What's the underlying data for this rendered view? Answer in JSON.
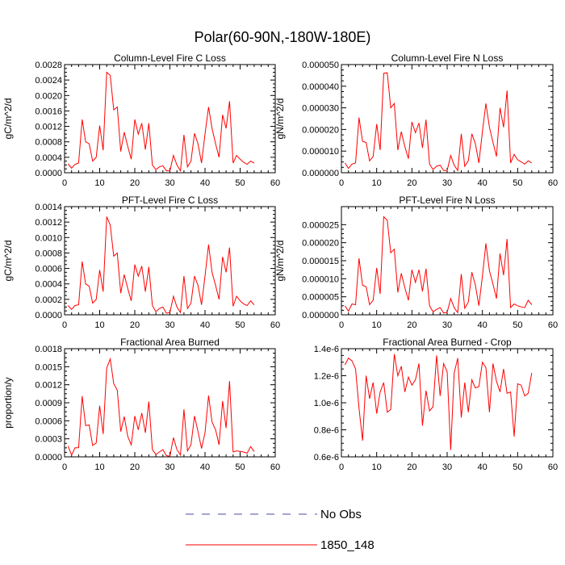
{
  "figure": {
    "title": "Polar(60-90N,-180W-180E)",
    "legend": [
      {
        "label": "No Obs",
        "color": "#4a4aa8",
        "dash": true
      },
      {
        "label": "1850_148",
        "color": "#ff0000",
        "dash": false
      }
    ]
  },
  "chart_data": [
    {
      "type": "line",
      "title": "Column-Level Fire C Loss",
      "ylabel": "gC/m^2/d",
      "xlim": [
        0,
        60
      ],
      "xticks": [
        "0",
        "10",
        "20",
        "30",
        "40",
        "50",
        "60"
      ],
      "ylim": [
        0,
        0.0028
      ],
      "yticks": [
        "0.0000",
        "0.0004",
        "0.0008",
        "0.0012",
        "0.0016",
        "0.0020",
        "0.0024",
        "0.0028"
      ],
      "series": [
        {
          "color": "#ff0000",
          "x": [
            1,
            2,
            3,
            4,
            5,
            6,
            7,
            8,
            9,
            10,
            11,
            12,
            13,
            14,
            15,
            16,
            17,
            18,
            19,
            20,
            21,
            22,
            23,
            24,
            25,
            26,
            27,
            28,
            29,
            30,
            31,
            32,
            33,
            34,
            35,
            36,
            37,
            38,
            39,
            40,
            41,
            42,
            43,
            44,
            45,
            46,
            47,
            48,
            49,
            50,
            51,
            52,
            53,
            54
          ],
          "y": [
            0.00023,
            0.00012,
            0.00022,
            0.00025,
            0.00138,
            0.0008,
            0.00075,
            0.0003,
            0.0004,
            0.00122,
            0.00058,
            0.0026,
            0.00252,
            0.00163,
            0.0017,
            0.00055,
            0.00105,
            0.00068,
            0.00035,
            0.00138,
            0.001,
            0.00128,
            0.0006,
            0.00128,
            0.0002,
            8e-05,
            0.00015,
            0.00018,
            5e-05,
            5e-05,
            0.00045,
            0.0002,
            5e-05,
            0.00098,
            0.00015,
            0.0003,
            0.00102,
            0.00075,
            0.00025,
            0.001,
            0.0017,
            0.00115,
            0.00075,
            0.0004,
            0.0015,
            0.00115,
            0.00185,
            0.00025,
            0.00045,
            0.00035,
            0.00027,
            0.00022,
            0.0003,
            0.00025
          ]
        }
      ]
    },
    {
      "type": "line",
      "title": "Column-Level Fire N Loss",
      "ylabel": "gN/m^2/d",
      "xlim": [
        0,
        60
      ],
      "xticks": [
        "0",
        "10",
        "20",
        "30",
        "40",
        "50",
        "60"
      ],
      "ylim": [
        0,
        5e-05
      ],
      "yticks": [
        "0.000000",
        "0.000010",
        "0.000020",
        "0.000030",
        "0.000040",
        "0.000050"
      ],
      "series": [
        {
          "color": "#ff0000",
          "x": [
            1,
            2,
            3,
            4,
            5,
            6,
            7,
            8,
            9,
            10,
            11,
            12,
            13,
            14,
            15,
            16,
            17,
            18,
            19,
            20,
            21,
            22,
            23,
            24,
            25,
            26,
            27,
            28,
            29,
            30,
            31,
            32,
            33,
            34,
            35,
            36,
            37,
            38,
            39,
            40,
            41,
            42,
            43,
            44,
            45,
            46,
            47,
            48,
            49,
            50,
            51,
            52,
            53,
            54
          ],
          "y": [
            4.5e-06,
            2e-06,
            4e-06,
            4.5e-06,
            2.55e-05,
            1.45e-05,
            1.4e-05,
            5.5e-06,
            7.5e-06,
            2.25e-05,
            1.05e-05,
            4.6e-05,
            4.62e-05,
            3e-05,
            3.2e-05,
            1.05e-05,
            1.9e-05,
            1.2e-05,
            6.5e-06,
            2.35e-05,
            1.85e-05,
            2.3e-05,
            1.15e-05,
            2.45e-05,
            4e-06,
            1.5e-06,
            3e-06,
            3.5e-06,
            1e-06,
            1e-06,
            8e-06,
            3.5e-06,
            1e-06,
            1.8e-05,
            3e-06,
            5.5e-06,
            1.8e-05,
            1.35e-05,
            4.5e-06,
            1.9e-05,
            3.2e-05,
            2.1e-05,
            1.4e-05,
            7.5e-06,
            3e-05,
            2.1e-05,
            3.8e-05,
            4.5e-06,
            8.5e-06,
            6e-06,
            5e-06,
            4e-06,
            5.5e-06,
            4.5e-06
          ]
        }
      ]
    },
    {
      "type": "line",
      "title": "PFT-Level Fire C Loss",
      "ylabel": "gC/m^2/d",
      "xlim": [
        0,
        60
      ],
      "xticks": [
        "0",
        "10",
        "20",
        "30",
        "40",
        "50",
        "60"
      ],
      "ylim": [
        0,
        0.0014
      ],
      "yticks": [
        "0.0000",
        "0.0002",
        "0.0004",
        "0.0006",
        "0.0008",
        "0.0010",
        "0.0012",
        "0.0014"
      ],
      "series": [
        {
          "color": "#ff0000",
          "x": [
            1,
            2,
            3,
            4,
            5,
            6,
            7,
            8,
            9,
            10,
            11,
            12,
            13,
            14,
            15,
            16,
            17,
            18,
            19,
            20,
            21,
            22,
            23,
            24,
            25,
            26,
            27,
            28,
            29,
            30,
            31,
            32,
            33,
            34,
            35,
            36,
            37,
            38,
            39,
            40,
            41,
            42,
            43,
            44,
            45,
            46,
            47,
            48,
            49,
            50,
            51,
            52,
            53,
            54
          ],
          "y": [
            0.00012,
            7e-05,
            0.00012,
            0.00013,
            0.00069,
            0.0004,
            0.00037,
            0.00015,
            0.0002,
            0.00058,
            0.0003,
            0.00127,
            0.00116,
            0.00076,
            0.0008,
            0.00028,
            0.00052,
            0.00034,
            0.00018,
            0.00065,
            0.0005,
            0.00063,
            0.0003,
            0.00062,
            0.00012,
            4e-05,
            8e-05,
            0.0001,
            2e-05,
            3e-05,
            0.00024,
            0.0001,
            3e-05,
            0.0005,
            8e-05,
            0.00015,
            0.0005,
            0.00038,
            0.00013,
            0.0005,
            0.00091,
            0.00055,
            0.00038,
            0.0002,
            0.00075,
            0.00055,
            0.00087,
            0.00011,
            0.00024,
            0.00018,
            0.00014,
            0.00012,
            0.00018,
            0.00013
          ]
        }
      ]
    },
    {
      "type": "line",
      "title": "PFT-Level Fire N Loss",
      "ylabel": "gN/m^2/d",
      "xlim": [
        0,
        60
      ],
      "xticks": [
        "0",
        "10",
        "20",
        "30",
        "40",
        "50",
        "60"
      ],
      "ylim": [
        0,
        3e-05
      ],
      "yticks": [
        "0.000000",
        "0.000005",
        "0.000010",
        "0.000015",
        "0.000020",
        "0.000025"
      ],
      "series": [
        {
          "color": "#ff0000",
          "x": [
            1,
            2,
            3,
            4,
            5,
            6,
            7,
            8,
            9,
            10,
            11,
            12,
            13,
            14,
            15,
            16,
            17,
            18,
            19,
            20,
            21,
            22,
            23,
            24,
            25,
            26,
            27,
            28,
            29,
            30,
            31,
            32,
            33,
            34,
            35,
            36,
            37,
            38,
            39,
            40,
            41,
            42,
            43,
            44,
            45,
            46,
            47,
            48,
            49,
            50,
            51,
            52,
            53,
            54
          ],
          "y": [
            2.5e-06,
            1e-06,
            3e-06,
            2.8e-06,
            1.57e-05,
            8.2e-06,
            7.8e-06,
            2.8e-06,
            4e-06,
            1.3e-05,
            5.8e-06,
            2.72e-05,
            2.62e-05,
            1.72e-05,
            1.82e-05,
            6.2e-06,
            1.15e-05,
            7.5e-06,
            4e-06,
            1.25e-05,
            9e-06,
            1.25e-05,
            6.5e-06,
            1.28e-05,
            2.5e-06,
            8e-07,
            1.5e-06,
            2e-06,
            5e-07,
            7e-07,
            4.5e-06,
            2e-06,
            6e-07,
            1.13e-05,
            1.8e-06,
            3.5e-06,
            1.18e-05,
            8.3e-06,
            2.5e-06,
            1.08e-05,
            1.98e-05,
            1.22e-05,
            8.5e-06,
            4.5e-06,
            1.7e-05,
            1.1e-05,
            2.1e-05,
            2e-06,
            3e-06,
            2.5e-06,
            2.2e-06,
            2e-06,
            4e-06,
            2.8e-06
          ]
        }
      ]
    },
    {
      "type": "line",
      "title": "Fractional Area Burned",
      "ylabel": "proportion/y",
      "xlim": [
        0,
        60
      ],
      "xticks": [
        "0",
        "10",
        "20",
        "30",
        "40",
        "50",
        "60"
      ],
      "ylim": [
        0,
        0.0018
      ],
      "yticks": [
        "0.0000",
        "0.0003",
        "0.0006",
        "0.0009",
        "0.0012",
        "0.0015",
        "0.0018"
      ],
      "series": [
        {
          "color": "#ff0000",
          "x": [
            1,
            2,
            3,
            4,
            5,
            6,
            7,
            8,
            9,
            10,
            11,
            12,
            13,
            14,
            15,
            16,
            17,
            18,
            19,
            20,
            21,
            22,
            23,
            24,
            25,
            26,
            27,
            28,
            29,
            30,
            31,
            32,
            33,
            34,
            35,
            36,
            37,
            38,
            39,
            40,
            41,
            42,
            43,
            44,
            45,
            46,
            47,
            48,
            49,
            50,
            51,
            52,
            53,
            54
          ],
          "y": [
            0.00018,
            3e-05,
            0.00015,
            0.00015,
            0.00101,
            0.00052,
            0.00053,
            0.00019,
            0.00023,
            0.00085,
            0.00038,
            0.00148,
            0.00163,
            0.00122,
            0.00111,
            0.00042,
            0.00067,
            0.00034,
            0.0002,
            0.00068,
            0.00045,
            0.00073,
            0.0004,
            0.00092,
            0.00012,
            4e-05,
            8e-05,
            0.00012,
            2e-05,
            1e-05,
            0.00032,
            0.00012,
            3e-05,
            0.00079,
            0.0001,
            0.0002,
            0.00068,
            0.00042,
            0.00014,
            0.0004,
            0.00102,
            0.00058,
            0.00045,
            0.0002,
            0.00093,
            0.00048,
            0.00126,
            8e-05,
            0.0001,
            9e-05,
            8e-05,
            6e-05,
            0.00017,
            9e-05
          ]
        }
      ]
    },
    {
      "type": "line",
      "title": "Fractional Area Burned - Crop",
      "ylabel": "",
      "xlim": [
        0,
        60
      ],
      "xticks": [
        "0",
        "10",
        "20",
        "30",
        "40",
        "50",
        "60"
      ],
      "ylim": [
        6e-07,
        1.4e-06
      ],
      "yticks": [
        "0.6e-6",
        "0.8e-6",
        "1.0e-6",
        "1.2e-6",
        "1.4e-6"
      ],
      "series": [
        {
          "color": "#ff0000",
          "x": [
            1,
            2,
            3,
            4,
            5,
            6,
            7,
            8,
            9,
            10,
            11,
            12,
            13,
            14,
            15,
            16,
            17,
            18,
            19,
            20,
            21,
            22,
            23,
            24,
            25,
            26,
            27,
            28,
            29,
            30,
            31,
            32,
            33,
            34,
            35,
            36,
            37,
            38,
            39,
            40,
            41,
            42,
            43,
            44,
            45,
            46,
            47,
            48,
            49,
            50,
            51,
            52,
            53,
            54
          ],
          "y": [
            1.28e-06,
            1.33e-06,
            1.31e-06,
            1.25e-06,
            9.6e-07,
            7.2e-07,
            1.2e-06,
            1.03e-06,
            1.15e-06,
            9.2e-07,
            1.08e-06,
            1.15e-06,
            9.3e-07,
            9.5e-07,
            1.36e-06,
            1.2e-06,
            1.27e-06,
            1.08e-06,
            1.19e-06,
            1.13e-06,
            1.17e-06,
            1.29e-06,
            8.3e-07,
            1.09e-06,
            9.4e-07,
            9.7e-07,
            1.35e-06,
            1.05e-06,
            1.29e-06,
            1.23e-06,
            6.5e-07,
            1.22e-06,
            1.33e-06,
            8.9e-07,
            1.15e-06,
            9.3e-07,
            1.17e-06,
            1.11e-06,
            1.12e-06,
            1.3e-06,
            1.26e-06,
            9.3e-07,
            1.29e-06,
            1.16e-06,
            1.08e-06,
            1.25e-06,
            1.07e-06,
            1.08e-06,
            7.5e-07,
            1.14e-06,
            1.13e-06,
            1.05e-06,
            1.07e-06,
            1.22e-06
          ]
        }
      ]
    }
  ]
}
